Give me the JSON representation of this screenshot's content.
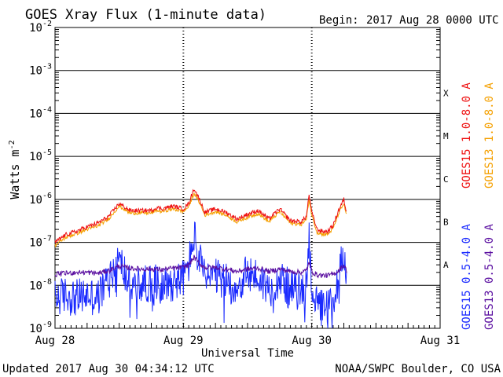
{
  "header": {
    "title": "GOES Xray Flux (1-minute data)",
    "begin_label": "Begin:",
    "begin_value": "2017 Aug 28 0000 UTC"
  },
  "footer": {
    "updated": "Updated 2017 Aug 30 04:34:12 UTC",
    "credit": "NOAA/SWPC Boulder, CO USA"
  },
  "colors": {
    "goes15_long": "#ee1111",
    "goes13_long": "#f5a000",
    "goes15_short": "#1a2aff",
    "goes13_short": "#5a0ea0"
  },
  "chart_data": {
    "type": "line",
    "yscale": "log",
    "ylim": [
      1e-09,
      0.01
    ],
    "xlim": [
      "2017-08-28T00:00",
      "2017-08-31T00:00"
    ],
    "grid": "horizontal lines at each decade; dashed vertical lines at day boundaries",
    "legend_placement": "right side, rotated vertical",
    "ylabel_base": "Watts m",
    "ylabel_exp": "-2",
    "xlabel": "Universal Time",
    "x_ticks": [
      "Aug 28",
      "Aug 29",
      "Aug 30",
      "Aug 31"
    ],
    "y_ticks": [
      {
        "base": "10",
        "exp": "-2"
      },
      {
        "base": "10",
        "exp": "-3"
      },
      {
        "base": "10",
        "exp": "-4"
      },
      {
        "base": "10",
        "exp": "-5"
      },
      {
        "base": "10",
        "exp": "-6"
      },
      {
        "base": "10",
        "exp": "-7"
      },
      {
        "base": "10",
        "exp": "-8"
      },
      {
        "base": "10",
        "exp": "-9"
      }
    ],
    "flare_classes": [
      {
        "label": "X",
        "flux": 0.0003
      },
      {
        "label": "M",
        "flux": 3e-05
      },
      {
        "label": "C",
        "flux": 3e-06
      },
      {
        "label": "B",
        "flux": 3e-07
      },
      {
        "label": "A",
        "flux": 3e-08
      }
    ],
    "legend": [
      {
        "label": "GOES15 1.0-8.0 A",
        "key": "goes15_long"
      },
      {
        "label": "GOES13 1.0-8.0 A",
        "key": "goes13_long"
      },
      {
        "label": "GOES15 0.5-4.0 A",
        "key": "goes15_short"
      },
      {
        "label": "GOES13 0.5-4.0 A",
        "key": "goes13_short"
      }
    ],
    "series": [
      {
        "name": "GOES15 1.0-8.0 A",
        "key": "goes15_long",
        "hours": [
          0,
          2,
          4,
          6,
          8,
          10,
          12,
          14,
          16,
          18,
          19,
          20,
          22,
          24,
          25,
          26,
          27,
          28,
          30,
          32,
          34,
          36,
          38,
          40,
          42,
          44,
          46,
          47,
          47.5,
          48,
          49,
          50,
          51,
          52,
          53,
          54,
          54.5
        ],
        "values": [
          1e-07,
          1.5e-07,
          1.8e-07,
          2.3e-07,
          2.8e-07,
          4e-07,
          8e-07,
          5.5e-07,
          5.5e-07,
          5.5e-07,
          6.5e-07,
          6e-07,
          7e-07,
          6e-07,
          8e-07,
          1.8e-06,
          1e-06,
          5e-07,
          6e-07,
          5e-07,
          3.5e-07,
          4.5e-07,
          5.5e-07,
          3.5e-07,
          6e-07,
          3.2e-07,
          3e-07,
          4e-07,
          1.3e-06,
          5e-07,
          2e-07,
          1.8e-07,
          1.8e-07,
          2.5e-07,
          5.5e-07,
          1e-06,
          5e-07
        ]
      },
      {
        "name": "GOES13 1.0-8.0 A",
        "key": "goes13_long",
        "hours": [
          0,
          2,
          4,
          6,
          8,
          10,
          12,
          14,
          16,
          18,
          19,
          20,
          22,
          24,
          25,
          26,
          27,
          28,
          30,
          32,
          34,
          36,
          38,
          40,
          42,
          44,
          46,
          47,
          47.5,
          48,
          49,
          50,
          51,
          52,
          53,
          54,
          54.5
        ],
        "values": [
          8.5e-08,
          1.3e-07,
          1.6e-07,
          2e-07,
          2.4e-07,
          3.5e-07,
          7e-07,
          4.8e-07,
          4.8e-07,
          4.8e-07,
          5.5e-07,
          5.2e-07,
          6e-07,
          5.2e-07,
          6.8e-07,
          1.4e-06,
          8.5e-07,
          4.3e-07,
          5.2e-07,
          4.3e-07,
          3e-07,
          3.8e-07,
          4.7e-07,
          3e-07,
          5.2e-07,
          2.8e-07,
          2.6e-07,
          3.4e-07,
          1e-06,
          4.3e-07,
          1.7e-07,
          1.55e-07,
          1.55e-07,
          2.1e-07,
          4.6e-07,
          8e-07,
          4.3e-07
        ]
      },
      {
        "name": "GOES15 0.5-4.0 A",
        "key": "goes15_short",
        "hours": [
          0,
          2,
          4,
          6,
          8,
          10,
          12,
          14,
          16,
          18,
          20,
          22,
          24,
          25,
          26,
          27,
          28,
          30,
          32,
          34,
          36,
          38,
          40,
          42,
          44,
          46,
          47,
          47.5,
          48,
          49,
          50,
          51,
          52,
          53,
          54,
          54.5
        ],
        "values": [
          5e-09,
          6e-09,
          5e-09,
          6e-09,
          5e-09,
          1.5e-08,
          4e-08,
          1e-08,
          1e-08,
          1.2e-08,
          1e-08,
          1.2e-08,
          1.5e-08,
          3e-08,
          1.5e-07,
          4e-08,
          1.5e-08,
          1.5e-08,
          1.2e-08,
          8e-09,
          2e-08,
          1.5e-08,
          8e-09,
          1.5e-08,
          8e-09,
          7e-09,
          1e-08,
          1.5e-07,
          1e-08,
          3e-09,
          3e-09,
          3e-09,
          4e-09,
          1.5e-08,
          8e-08,
          1e-08
        ]
      },
      {
        "name": "GOES13 0.5-4.0 A",
        "key": "goes13_short",
        "hours": [
          0,
          2,
          4,
          6,
          8,
          10,
          12,
          14,
          16,
          18,
          20,
          22,
          24,
          25,
          26,
          27,
          28,
          30,
          32,
          34,
          36,
          38,
          40,
          42,
          44,
          46,
          47,
          47.5,
          48,
          49,
          50,
          51,
          52,
          53,
          54,
          54.5
        ],
        "values": [
          1.8e-08,
          1.9e-08,
          2e-08,
          2e-08,
          1.9e-08,
          2.2e-08,
          2.8e-08,
          2.5e-08,
          2.4e-08,
          2.4e-08,
          2.3e-08,
          2.5e-08,
          2.6e-08,
          3e-08,
          4.5e-08,
          3.2e-08,
          2.6e-08,
          2.6e-08,
          2.4e-08,
          2.1e-08,
          2.4e-08,
          2.5e-08,
          2.1e-08,
          2.4e-08,
          2.1e-08,
          2e-08,
          2.2e-08,
          3.5e-08,
          2.1e-08,
          1.75e-08,
          1.7e-08,
          1.7e-08,
          1.8e-08,
          2.2e-08,
          3e-08,
          2.2e-08
        ]
      }
    ]
  }
}
